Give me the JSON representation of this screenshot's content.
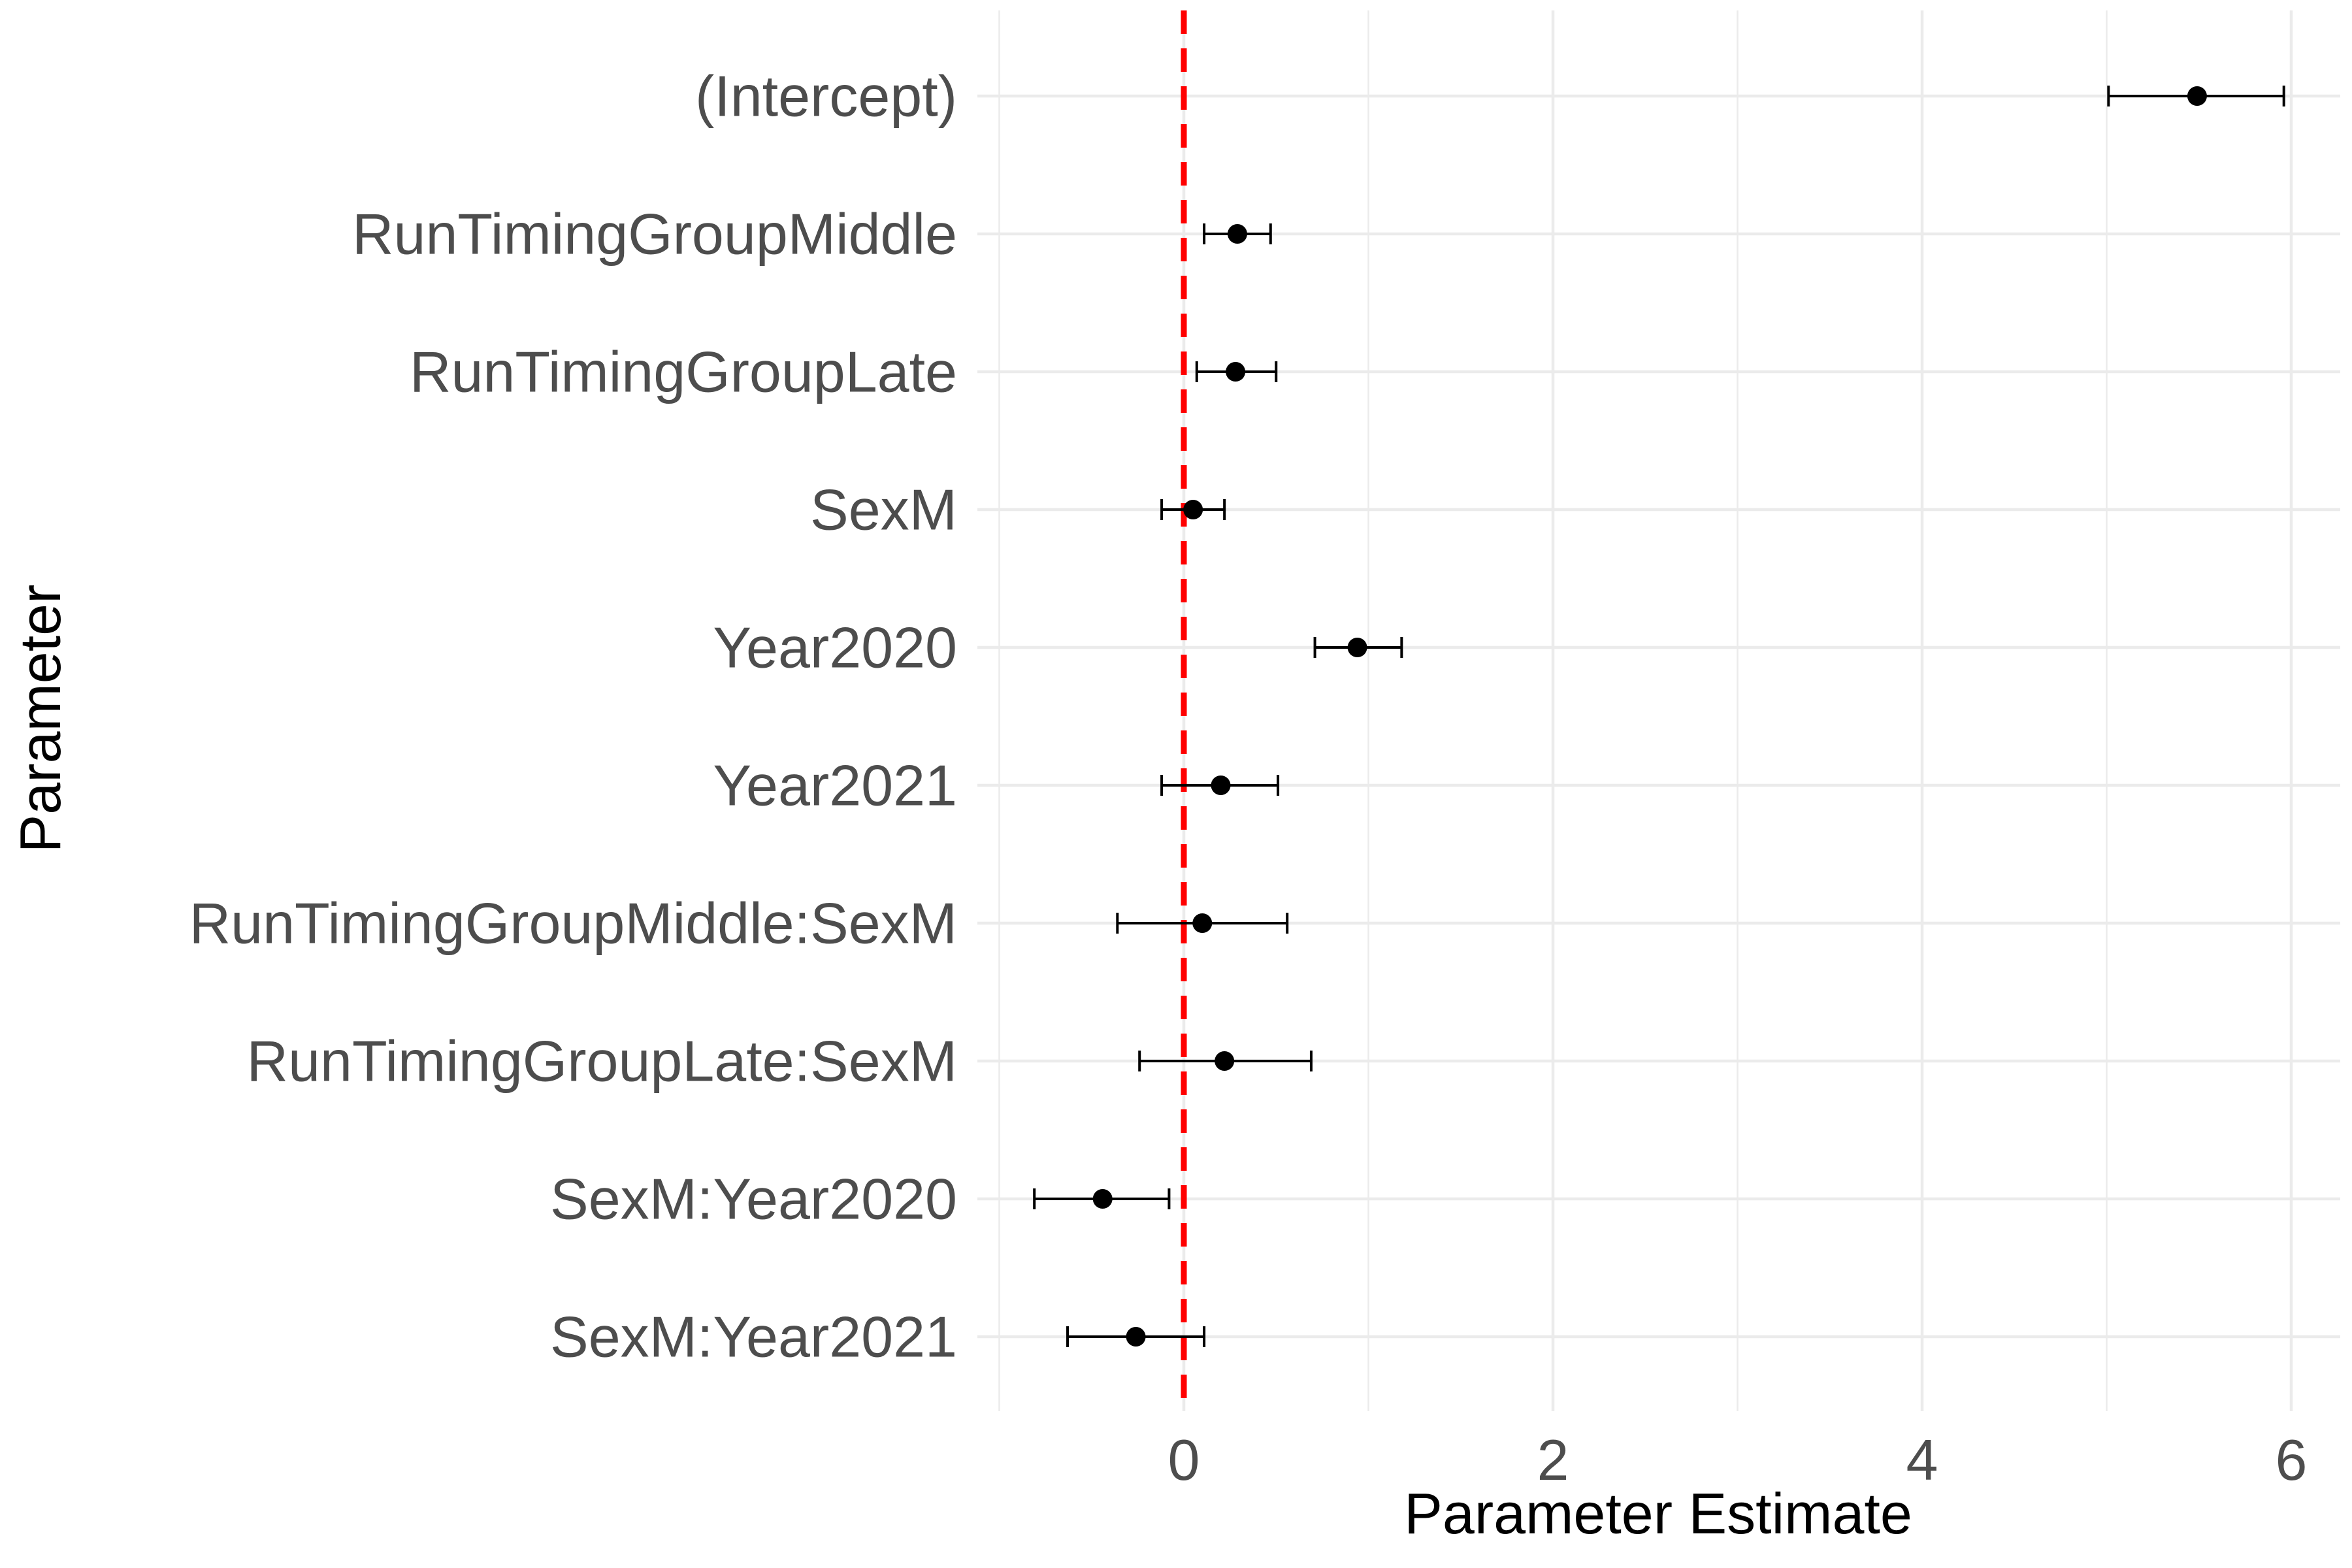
{
  "chart_data": {
    "type": "dot-errorbar",
    "xlabel": "Parameter Estimate",
    "ylabel": "Parameter",
    "xlim": [
      -1.0,
      6.3
    ],
    "x_ticks": [
      0,
      2,
      4,
      6
    ],
    "x_tick_labels": [
      "0",
      "2",
      "4",
      "6"
    ],
    "reference_line": {
      "x": 0,
      "style": "dashed",
      "color": "#ff0000"
    },
    "grid": true,
    "legend": "none",
    "colors": {
      "point": "#000000",
      "grid": "#ebebeb",
      "reference": "#ff0000",
      "tick_text": "#4d4d4d"
    },
    "points": [
      {
        "label": "(Intercept)",
        "estimate": 5.49,
        "lower": 5.01,
        "upper": 5.96
      },
      {
        "label": "RunTimingGroupMiddle",
        "estimate": 0.29,
        "lower": 0.11,
        "upper": 0.47
      },
      {
        "label": "RunTimingGroupLate",
        "estimate": 0.28,
        "lower": 0.07,
        "upper": 0.5
      },
      {
        "label": "SexM",
        "estimate": 0.05,
        "lower": -0.12,
        "upper": 0.22
      },
      {
        "label": "Year2020",
        "estimate": 0.94,
        "lower": 0.71,
        "upper": 1.18
      },
      {
        "label": "Year2021",
        "estimate": 0.2,
        "lower": -0.12,
        "upper": 0.51
      },
      {
        "label": "RunTimingGroupMiddle:SexM",
        "estimate": 0.1,
        "lower": -0.36,
        "upper": 0.56
      },
      {
        "label": "RunTimingGroupLate:SexM",
        "estimate": 0.22,
        "lower": -0.24,
        "upper": 0.69
      },
      {
        "label": "SexM:Year2020",
        "estimate": -0.44,
        "lower": -0.81,
        "upper": -0.08
      },
      {
        "label": "SexM:Year2021",
        "estimate": -0.26,
        "lower": -0.63,
        "upper": 0.11
      }
    ]
  }
}
